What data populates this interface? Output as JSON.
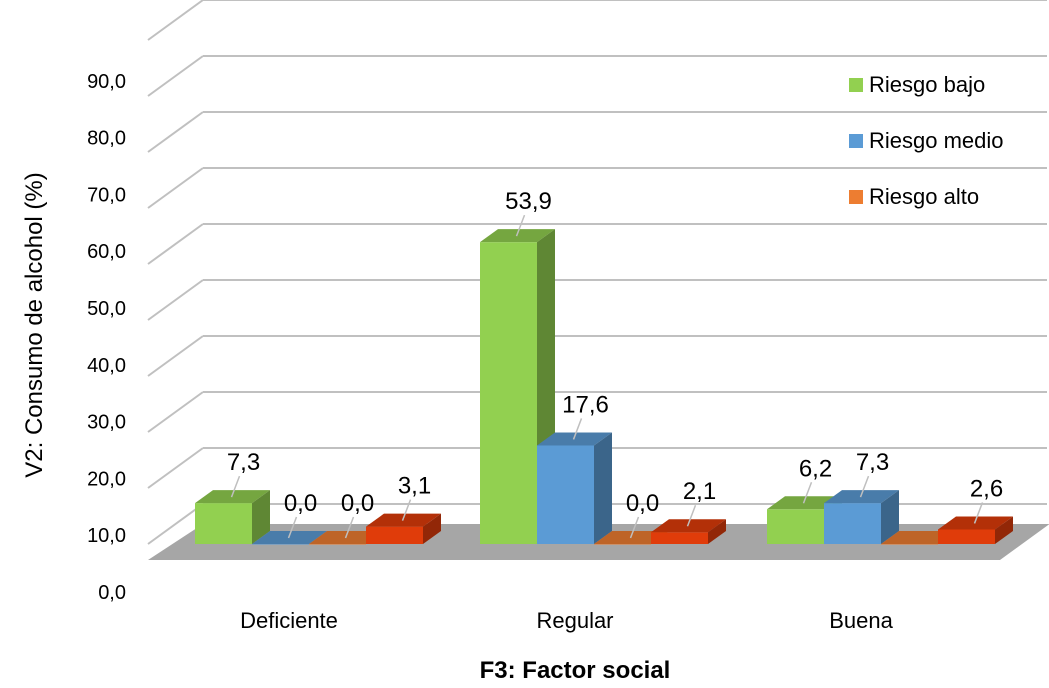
{
  "chart_data": {
    "type": "bar",
    "title": "",
    "xlabel": "F3: Factor social",
    "ylabel": "V2: Consumo de alcohol (%)",
    "ylim": [
      0,
      90
    ],
    "yticks": [
      "0,0",
      "10,0",
      "20,0",
      "30,0",
      "40,0",
      "50,0",
      "60,0",
      "70,0",
      "80,0",
      "90,0"
    ],
    "categories": [
      "Deficiente",
      "Regular",
      "Buena"
    ],
    "series": [
      {
        "name": "Riesgo bajo",
        "values": [
          7.3,
          53.9,
          6.2
        ],
        "labels": [
          "7,3",
          "53,9",
          "6,2"
        ],
        "color": "#92d050"
      },
      {
        "name": "Riesgo medio",
        "values": [
          0.0,
          17.6,
          7.3
        ],
        "labels": [
          "0,0",
          "17,6",
          "7,3"
        ],
        "color": "#5b9bd5"
      },
      {
        "name": "Riesgo alto",
        "values": [
          0.0,
          0.0,
          0.0
        ],
        "labels": [
          "0,0",
          "0,0",
          ""
        ],
        "color": "#ed7d31"
      },
      {
        "name": "",
        "values": [
          3.1,
          2.1,
          2.6
        ],
        "labels": [
          "3,1",
          "2,1",
          "2,6"
        ],
        "color": "#e03c0a"
      }
    ],
    "legend": "top-right",
    "grid": true
  }
}
